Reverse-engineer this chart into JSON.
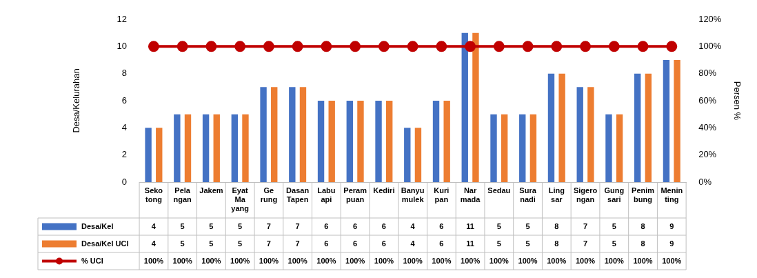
{
  "chart_data": {
    "type": "bar",
    "ylabel": "Desa/Kelurahan",
    "y2label": "Persen %",
    "categories": [
      "Seko tong",
      "Pela ngan",
      "Jakem",
      "Eyat Ma yang",
      "Ge rung",
      "Dasan Tapen",
      "Labu api",
      "Peram puan",
      "Kediri",
      "Banyu mulek",
      "Kuri pan",
      "Nar mada",
      "Sedau",
      "Sura nadi",
      "Ling sar",
      "Sigero ngan",
      "Gung sari",
      "Penim bung",
      "Menin ting"
    ],
    "series": [
      {
        "name": "Desa/Kel",
        "color": "#4472c4",
        "values": [
          4,
          5,
          5,
          5,
          7,
          7,
          6,
          6,
          6,
          4,
          6,
          11,
          5,
          5,
          8,
          7,
          5,
          8,
          9
        ],
        "value_labels": [
          "4",
          "5",
          "5",
          "5",
          "7",
          "7",
          "6",
          "6",
          "6",
          "4",
          "6",
          "11",
          "5",
          "5",
          "8",
          "7",
          "5",
          "8",
          "9"
        ]
      },
      {
        "name": "Desa/Kel UCI",
        "color": "#ed7d31",
        "values": [
          4,
          5,
          5,
          5,
          7,
          7,
          6,
          6,
          6,
          4,
          6,
          11,
          5,
          5,
          8,
          7,
          5,
          8,
          9
        ],
        "value_labels": [
          "4",
          "5",
          "5",
          "5",
          "7",
          "7",
          "6",
          "6",
          "6",
          "4",
          "6",
          "11",
          "5",
          "5",
          "8",
          "7",
          "5",
          "8",
          "9"
        ]
      },
      {
        "name": "% UCI",
        "type": "line",
        "axis": "y2",
        "marker": "circle",
        "color": "#c00000",
        "values": [
          100,
          100,
          100,
          100,
          100,
          100,
          100,
          100,
          100,
          100,
          100,
          100,
          100,
          100,
          100,
          100,
          100,
          100,
          100
        ],
        "value_labels": [
          "100%",
          "100%",
          "100%",
          "100%",
          "100%",
          "100%",
          "100%",
          "100%",
          "100%",
          "100%",
          "100%",
          "100%",
          "100%",
          "100%",
          "100%",
          "100%",
          "100%",
          "100%",
          "100%"
        ]
      }
    ],
    "ylim": [
      0,
      12
    ],
    "yticks": [
      0,
      2,
      4,
      6,
      8,
      10,
      12
    ],
    "y2lim": [
      0,
      120
    ],
    "y2ticks": [
      {
        "value": 0,
        "label": "0%"
      },
      {
        "value": 20,
        "label": "20%"
      },
      {
        "value": 40,
        "label": "40%"
      },
      {
        "value": 60,
        "label": "60%"
      },
      {
        "value": 80,
        "label": "80%"
      },
      {
        "value": 100,
        "label": "100%"
      },
      {
        "value": 120,
        "label": "120%"
      }
    ],
    "legend": "bottom",
    "grid": false
  }
}
